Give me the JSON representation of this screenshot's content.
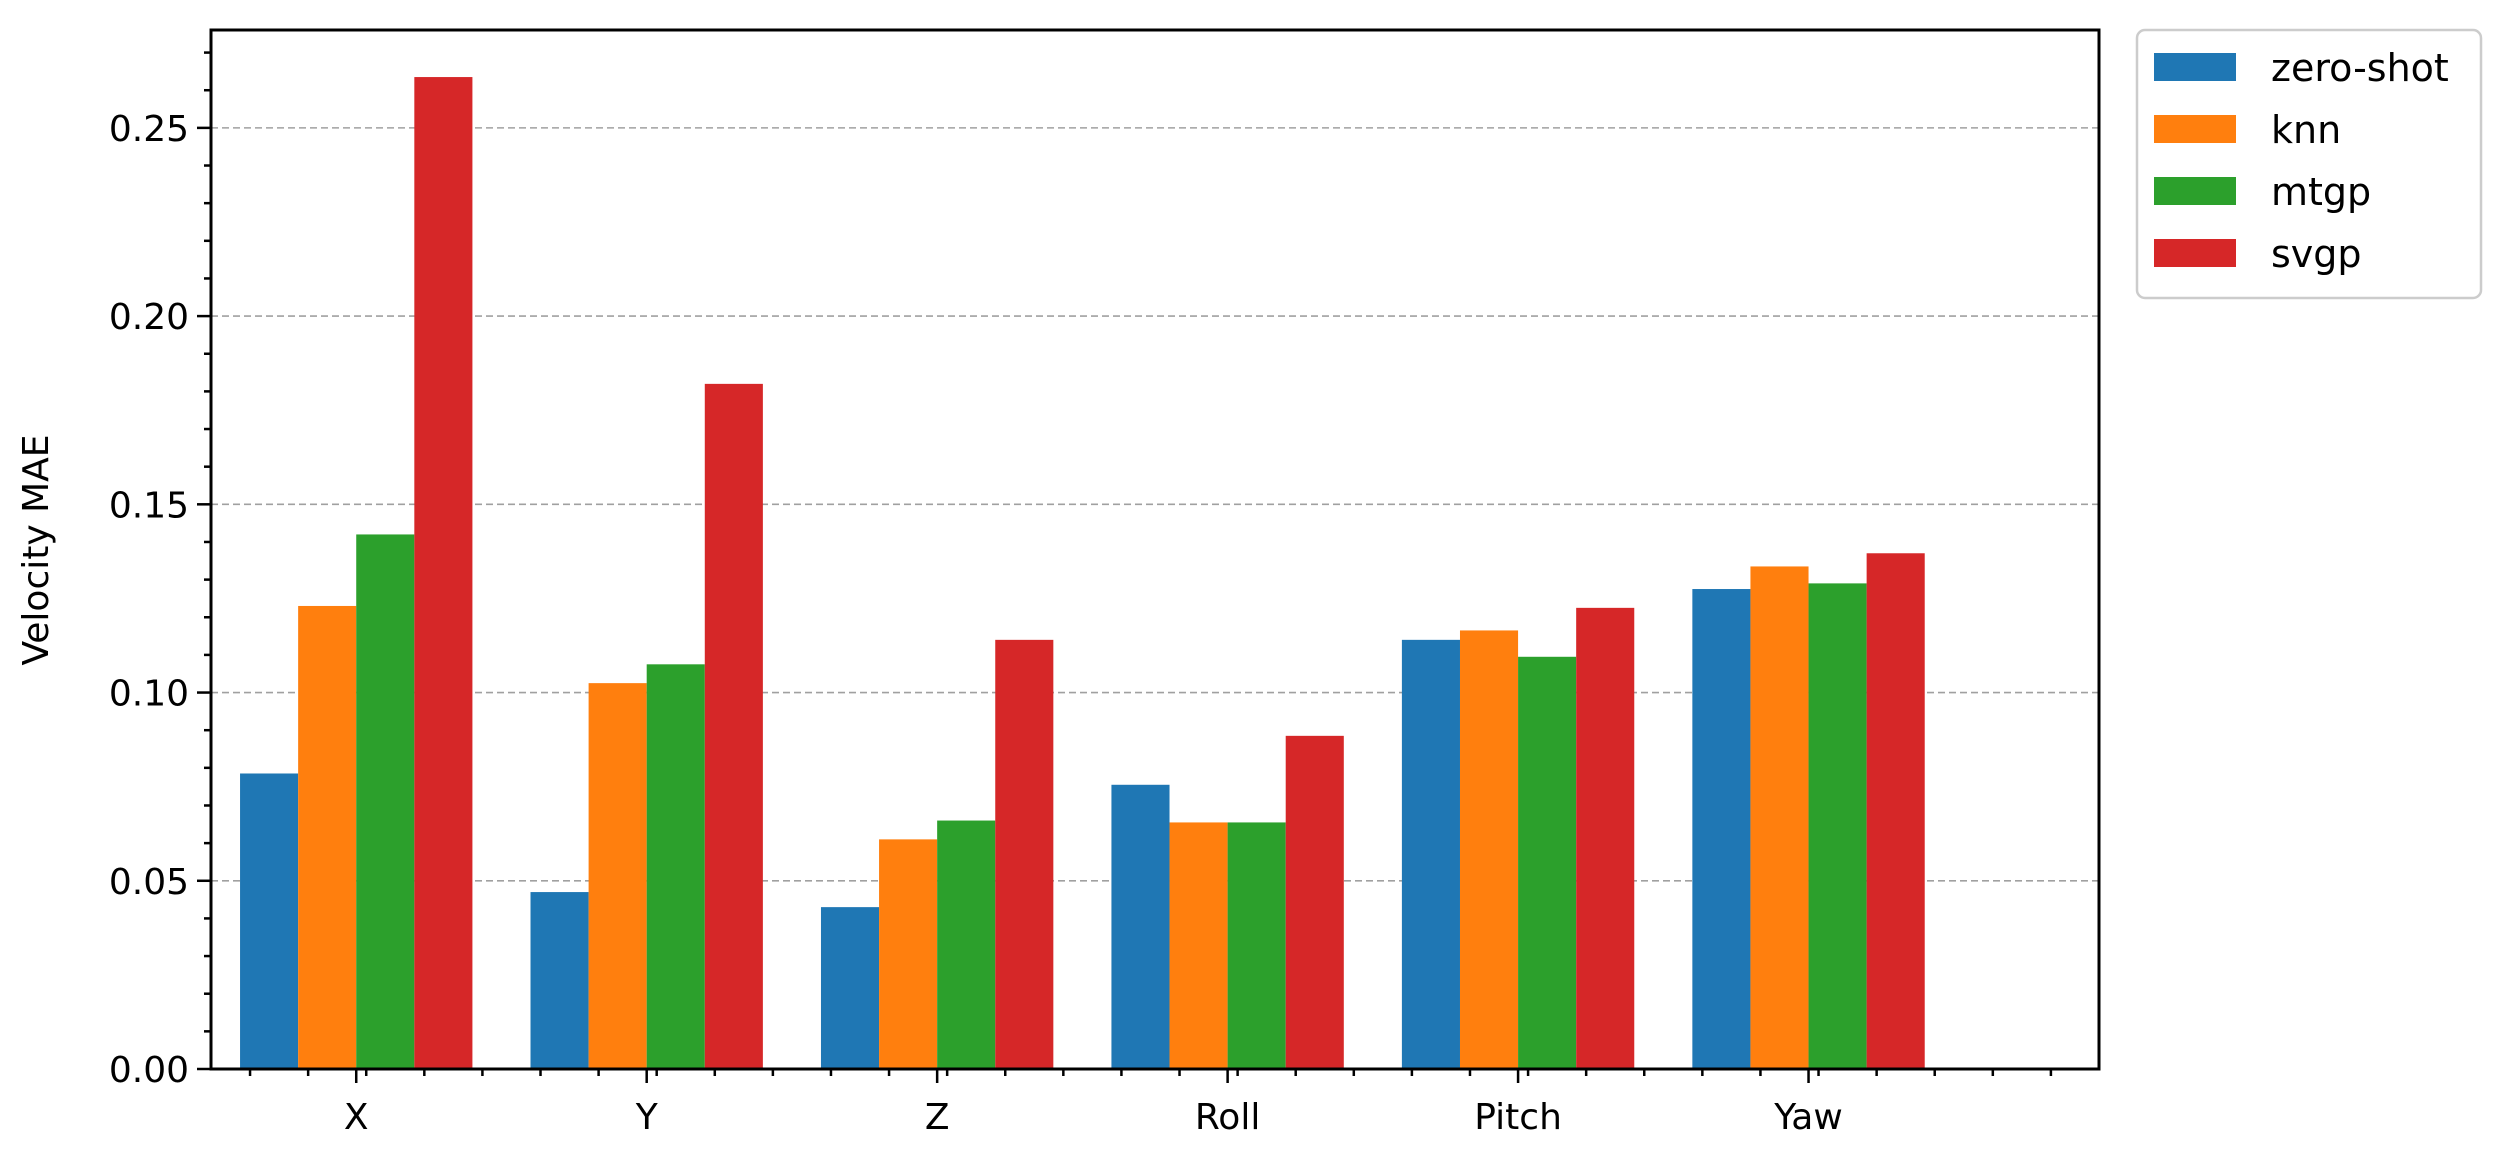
{
  "chart_data": {
    "type": "bar",
    "title": "",
    "xlabel": "",
    "ylabel": "Velocity MAE",
    "categories": [
      "X",
      "Y",
      "Z",
      "Roll",
      "Pitch",
      "Yaw"
    ],
    "series": [
      {
        "name": "zero-shot",
        "color": "#1f77b4",
        "values": [
          0.0785,
          0.047,
          0.043,
          0.0755,
          0.114,
          0.1275
        ]
      },
      {
        "name": "knn",
        "color": "#ff7f0e",
        "values": [
          0.123,
          0.1025,
          0.061,
          0.0655,
          0.1165,
          0.1335
        ]
      },
      {
        "name": "mtgp",
        "color": "#2ca02c",
        "values": [
          0.142,
          0.1075,
          0.066,
          0.0655,
          0.1095,
          0.129
        ]
      },
      {
        "name": "svgp",
        "color": "#d62728",
        "values": [
          0.2635,
          0.182,
          0.114,
          0.0885,
          0.1225,
          0.137
        ]
      }
    ],
    "ylim": [
      0,
      0.276
    ],
    "yticks": [
      "0.00",
      "0.05",
      "0.10",
      "0.15",
      "0.20",
      "0.25"
    ],
    "grid": "y-major dashed",
    "legend_position": "outside-top-right"
  }
}
